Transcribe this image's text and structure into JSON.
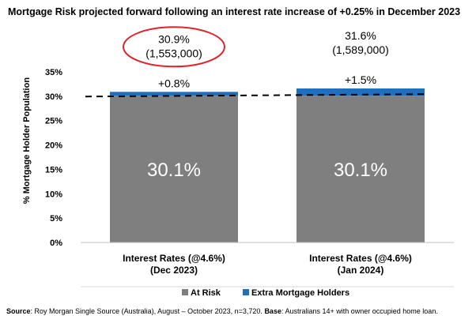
{
  "title": "Mortgage Risk projected forward following an interest rate increase of +0.25% in December 2023",
  "source": {
    "label": "Source",
    "text": ": Roy Morgan Single Source (Australia), August – October 2023, n=3,720. ",
    "base_label": "Base",
    "base_text": ": Australians 14+ with owner occupied home loan."
  },
  "chart_data": {
    "type": "bar",
    "stacked": true,
    "ylabel": "% Mortgage Holder Population",
    "ylim": [
      0,
      35
    ],
    "yticks": [
      "0%",
      "5%",
      "10%",
      "15%",
      "20%",
      "25%",
      "30%",
      "35%"
    ],
    "categories": [
      "Interest Rates (@4.6%)\n(Dec 2023)",
      "Interest Rates (@4.6%)\n(Jan 2024)"
    ],
    "series": [
      {
        "name": "At Risk",
        "values": [
          30.1,
          30.1
        ],
        "color": "#7f7f7f",
        "labels": [
          "30.1%",
          "30.1%"
        ]
      },
      {
        "name": "Extra Mortgage Holders",
        "values": [
          0.8,
          1.5
        ],
        "color": "#1f6fbf",
        "labels": [
          "+0.8%",
          "+1.5%"
        ]
      }
    ],
    "total_labels": [
      {
        "pct": "30.9%",
        "count": "(1,553,000)",
        "highlighted": true
      },
      {
        "pct": "31.6%",
        "count": "(1,589,000)",
        "highlighted": false
      }
    ],
    "reference_line": {
      "value": 30.1,
      "style": "dashed"
    },
    "legend": [
      "At Risk",
      "Extra Mortgage Holders"
    ],
    "grid": false,
    "legend_position": "bottom",
    "highlight_color": "#e0242b"
  }
}
